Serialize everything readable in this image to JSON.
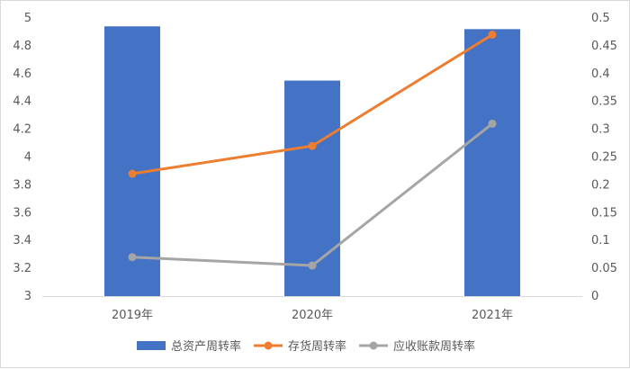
{
  "chart_data": {
    "type": "bar",
    "categories": [
      "2019年",
      "2020年",
      "2021年"
    ],
    "series": [
      {
        "name": "总资产周转率",
        "type": "bar",
        "axis": "left",
        "color": "#4472C4",
        "values": [
          4.94,
          4.55,
          4.92
        ]
      },
      {
        "name": "存货周转率",
        "type": "line",
        "axis": "right",
        "color": "#ED7D31",
        "values": [
          0.22,
          0.27,
          0.47
        ]
      },
      {
        "name": "应收账款周转率",
        "type": "line",
        "axis": "right",
        "color": "#A5A5A5",
        "values": [
          0.07,
          0.055,
          0.31
        ]
      }
    ],
    "ylim_left": [
      3,
      5
    ],
    "ylim_right": [
      0,
      0.5
    ],
    "left_ticks": [
      "3",
      "3.2",
      "3.4",
      "3.6",
      "3.8",
      "4",
      "4.2",
      "4.4",
      "4.6",
      "4.8",
      "5"
    ],
    "right_ticks": [
      "0",
      "0.05",
      "0.1",
      "0.15",
      "0.2",
      "0.25",
      "0.3",
      "0.35",
      "0.4",
      "0.45",
      "0.5"
    ],
    "grid": false,
    "legend_position": "bottom",
    "title": "",
    "xlabel": "",
    "ylabel": ""
  }
}
